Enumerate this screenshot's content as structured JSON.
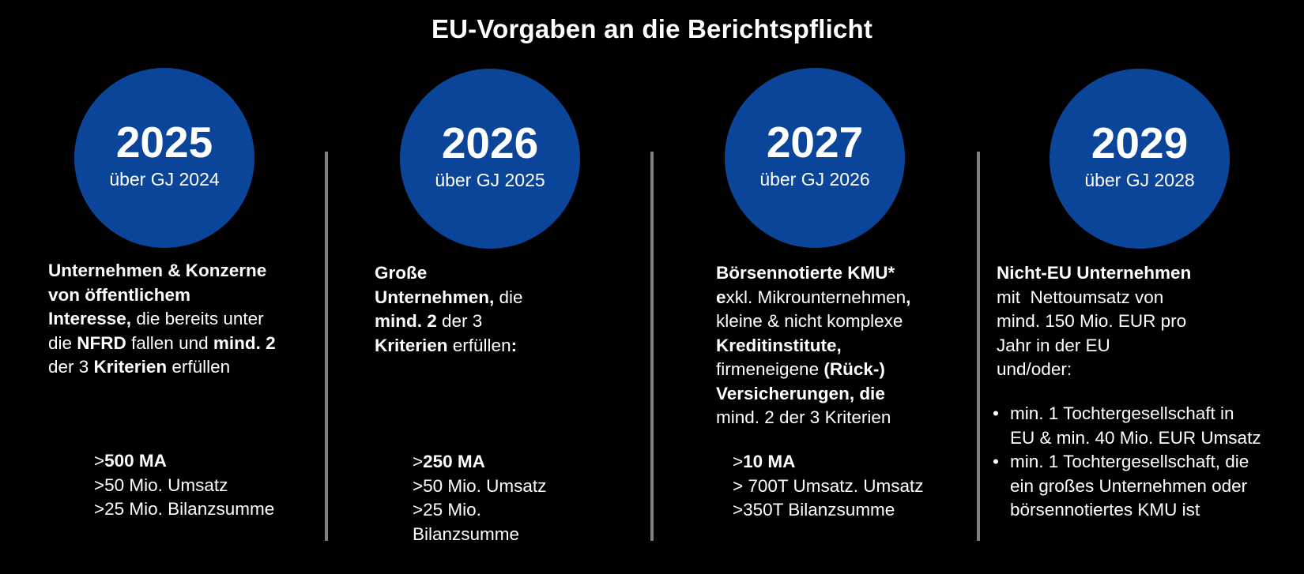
{
  "title": "EU-Vorgaben an die Berichtspflicht",
  "colors": {
    "background": "#000000",
    "circle": "#0b4599",
    "divider": "#7f7f7f",
    "text": "#ffffff"
  },
  "columns": [
    {
      "year": "2025",
      "sub": "über GJ 2024",
      "desc": [
        {
          "t": "Unternehmen & Konzerne",
          "b": true
        },
        {
          "t": "von öffentlichem",
          "b": true
        },
        [
          {
            "t": "Interesse,",
            "b": true
          },
          {
            "t": " die bereits unter",
            "b": false
          }
        ],
        [
          {
            "t": "die ",
            "b": false
          },
          {
            "t": "NFRD",
            "b": true
          },
          {
            "t": " fallen und ",
            "b": false
          },
          {
            "t": "mind. 2",
            "b": true
          }
        ],
        [
          {
            "t": "der 3 ",
            "b": false
          },
          {
            "t": "Kriterien",
            "b": true
          },
          {
            "t": " erfüllen",
            "b": false
          }
        ]
      ],
      "criteria": [
        [
          {
            "t": ">",
            "b": false
          },
          {
            "t": "500 MA",
            "b": true
          }
        ],
        [
          {
            "t": ">50 Mio. Umsatz",
            "b": false
          }
        ],
        [
          {
            "t": ">25 Mio. Bilanzsumme",
            "b": false
          }
        ]
      ]
    },
    {
      "year": "2026",
      "sub": "über GJ 2025",
      "desc": [
        {
          "t": "Große",
          "b": true
        },
        [
          {
            "t": "Unternehmen,",
            "b": true
          },
          {
            "t": " die",
            "b": false
          }
        ],
        [
          {
            "t": "mind. 2",
            "b": true
          },
          {
            "t": " der 3",
            "b": false
          }
        ],
        [
          {
            "t": "Kriterien",
            "b": true
          },
          {
            "t": " erfüllen",
            "b": false
          },
          {
            "t": ":",
            "b": true
          }
        ]
      ],
      "criteria": [
        [
          {
            "t": ">",
            "b": false
          },
          {
            "t": "250 MA",
            "b": true
          }
        ],
        [
          {
            "t": ">50 Mio. Umsatz",
            "b": false
          }
        ],
        [
          {
            "t": ">25 Mio.",
            "b": false
          }
        ],
        [
          {
            "t": "Bilanzsumme",
            "b": false
          }
        ]
      ]
    },
    {
      "year": "2027",
      "sub": "über GJ 2026",
      "desc": [
        {
          "t": "Börsennotierte KMU*",
          "b": true
        },
        [
          {
            "t": "e",
            "b": true
          },
          {
            "t": "xkl. Mikrounternehmen",
            "b": false
          },
          {
            "t": ",",
            "b": true
          }
        ],
        {
          "t": "kleine & nicht komplexe",
          "b": false
        },
        {
          "t": "Kreditinstitute,",
          "b": true
        },
        [
          {
            "t": "firmeneigene ",
            "b": false
          },
          {
            "t": "(Rück-)",
            "b": true
          }
        ],
        {
          "t": "Versicherungen, die",
          "b": true
        },
        {
          "t": "mind. 2 der 3 Kriterien",
          "b": false
        }
      ],
      "criteria": [
        [
          {
            "t": ">",
            "b": false
          },
          {
            "t": "10 MA",
            "b": true
          }
        ],
        [
          {
            "t": "> 700T Umsatz. Umsatz",
            "b": false
          }
        ],
        [
          {
            "t": ">350T Bilanzsumme",
            "b": false
          }
        ]
      ]
    },
    {
      "year": "2029",
      "sub": "über GJ 2028",
      "desc": [
        {
          "t": "Nicht-EU Unternehmen",
          "b": true
        },
        {
          "t": "mit  Nettoumsatz von",
          "b": false
        },
        {
          "t": "mind. 150 Mio. EUR pro",
          "b": false
        },
        {
          "t": "Jahr in der EU",
          "b": false
        },
        {
          "t": "und/oder:",
          "b": false
        }
      ],
      "bullets": [
        [
          "min. 1 Tochtergesellschaft in",
          "EU & min. 40 Mio. EUR Umsatz"
        ],
        [
          "min. 1 Tochtergesellschaft, die",
          "ein großes Unternehmen oder",
          "börsennotiertes KMU ist"
        ]
      ]
    }
  ]
}
